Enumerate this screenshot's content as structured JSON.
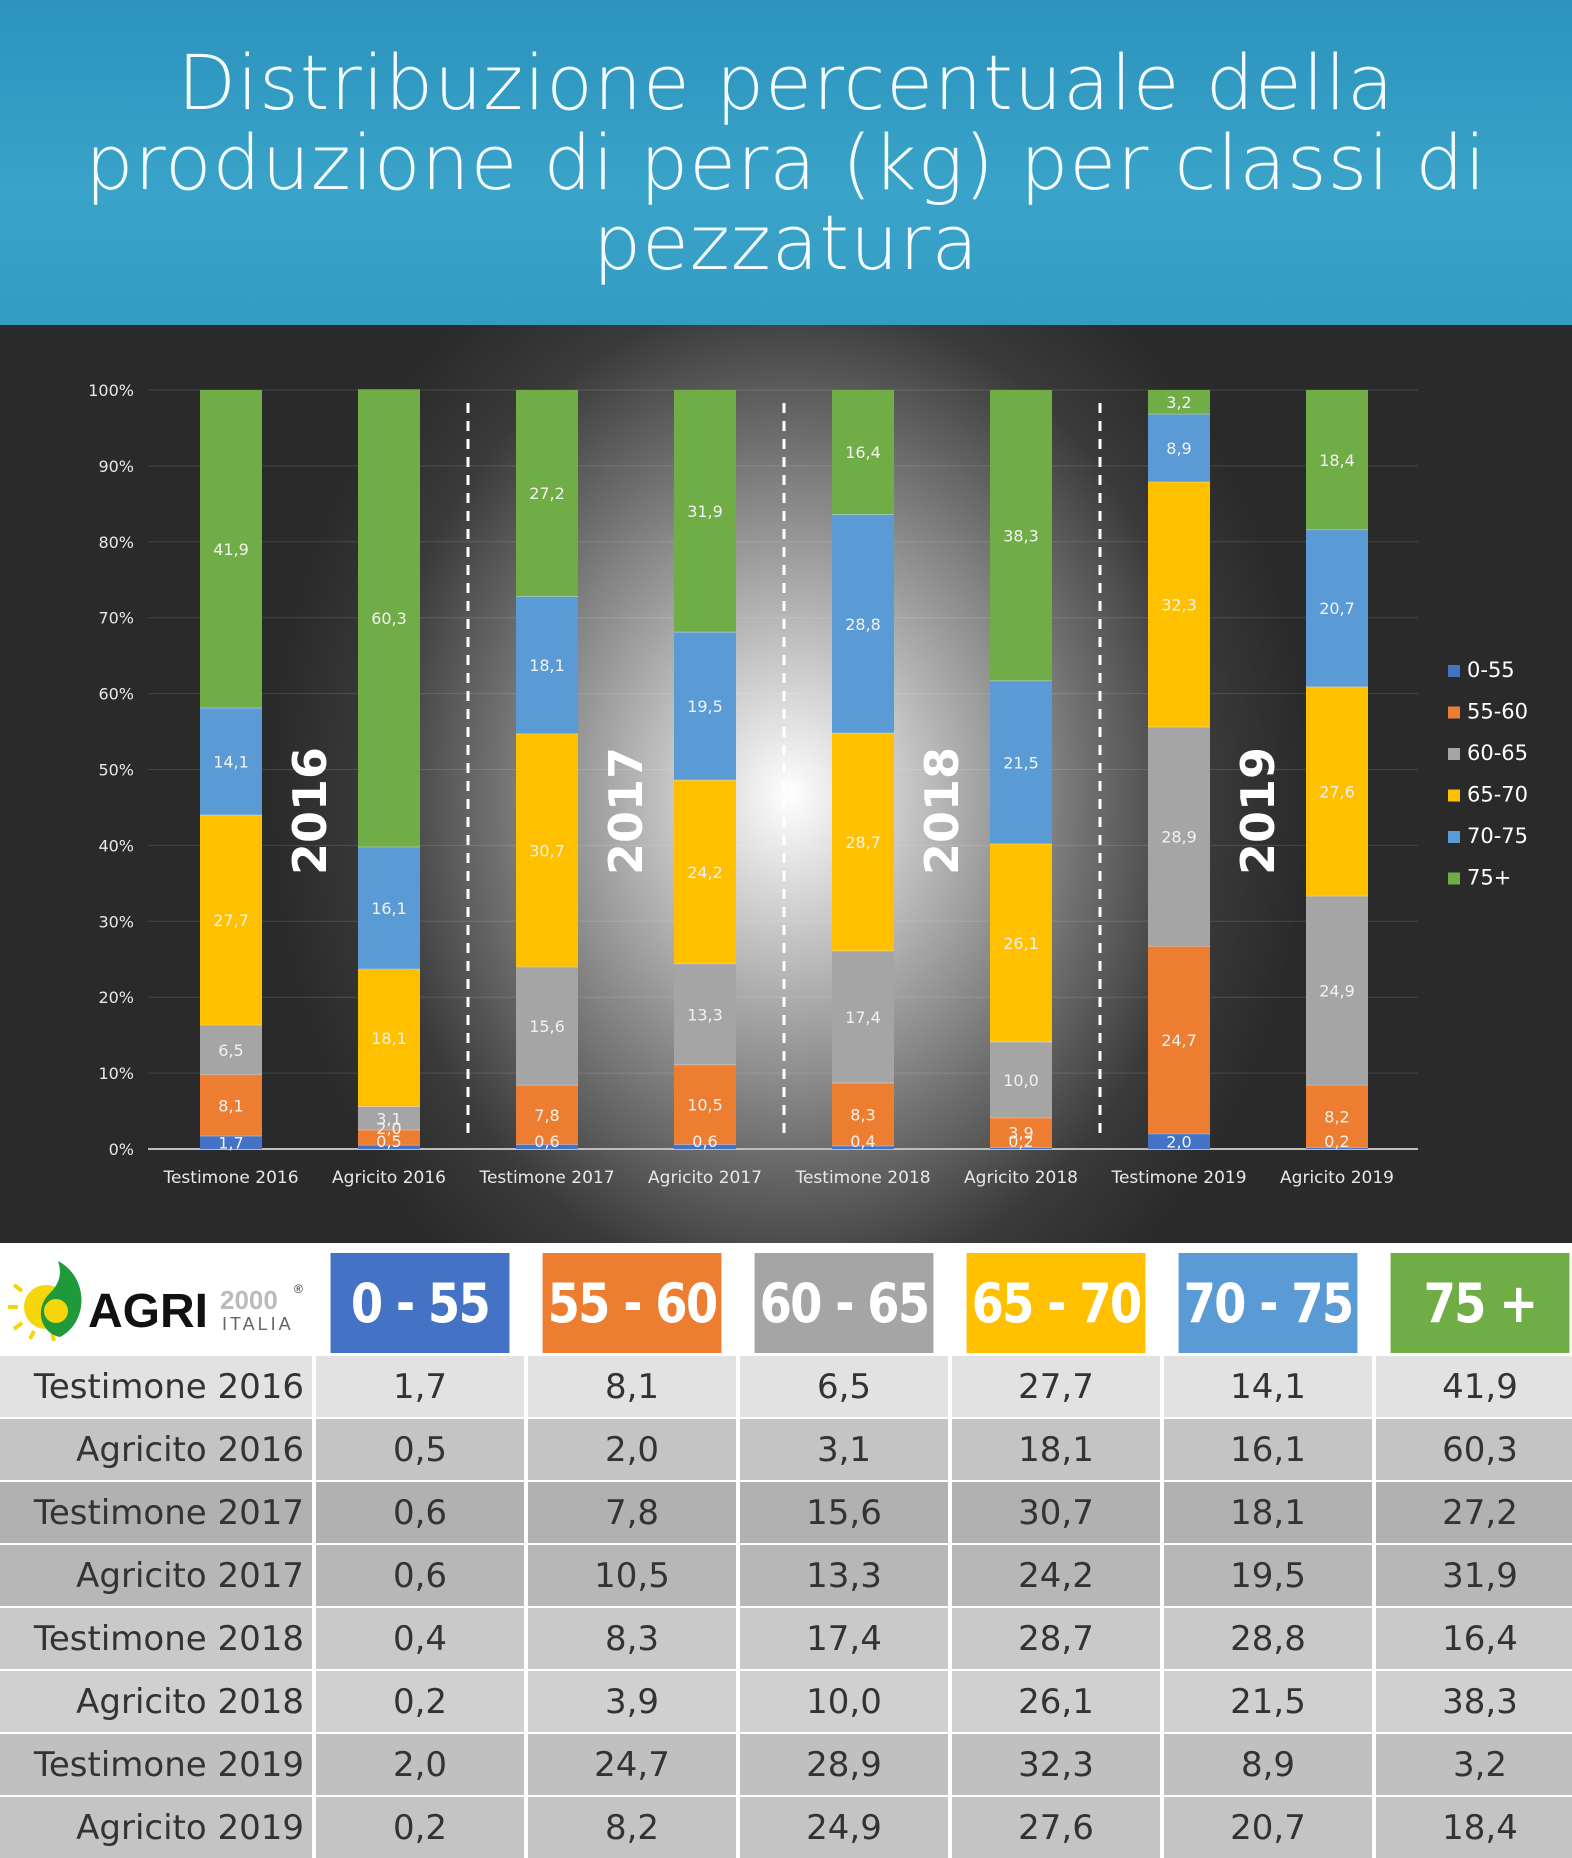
{
  "header": {
    "title": "Distribuzione percentuale della produzione di pera (kg) per classi di pezzatura"
  },
  "logo": {
    "brand": "AGRI",
    "brand_number": "2000",
    "brand_sub": "ITALIA",
    "registered": "®"
  },
  "chart_data": {
    "type": "bar",
    "stacked": true,
    "categories": [
      "Testimone 2016",
      "Agricito 2016",
      "Testimone 2017",
      "Agricito 2017",
      "Testimone 2018",
      "Agricito 2018",
      "Testimone 2019",
      "Agricito 2019"
    ],
    "series": [
      {
        "name": "0-55",
        "color": "#4472c4",
        "values": [
          1.7,
          0.5,
          0.6,
          0.6,
          0.4,
          0.2,
          2.0,
          0.2
        ]
      },
      {
        "name": "55-60",
        "color": "#ed7d31",
        "values": [
          8.1,
          2.0,
          7.8,
          10.5,
          8.3,
          3.9,
          24.7,
          8.2
        ]
      },
      {
        "name": "60-65",
        "color": "#a5a5a5",
        "values": [
          6.5,
          3.1,
          15.6,
          13.3,
          17.4,
          10.0,
          28.9,
          24.9
        ]
      },
      {
        "name": "65-70",
        "color": "#ffc000",
        "values": [
          27.7,
          18.1,
          30.7,
          24.2,
          28.7,
          26.1,
          32.3,
          27.6
        ]
      },
      {
        "name": "70-75",
        "color": "#5b9bd5",
        "values": [
          14.1,
          16.1,
          18.1,
          19.5,
          28.8,
          21.5,
          8.9,
          20.7
        ]
      },
      {
        "name": "75+",
        "color": "#70ad47",
        "values": [
          41.9,
          60.3,
          27.2,
          31.9,
          16.4,
          38.3,
          3.2,
          18.4
        ]
      }
    ],
    "data_labels": [
      [
        "1,7",
        "0,5",
        "0,6",
        "0,6",
        "0,4",
        "0,2",
        "2,0",
        "0,2"
      ],
      [
        "8,1",
        "2,0",
        "7,8",
        "10,5",
        "8,3",
        "3,9",
        "24,7",
        "8,2"
      ],
      [
        "6,5",
        "3,1",
        "15,6",
        "13,3",
        "17,4",
        "10,0",
        "28,9",
        "24,9"
      ],
      [
        "27,7",
        "18,1",
        "30,7",
        "24,2",
        "28,7",
        "26,1",
        "32,3",
        "27,6"
      ],
      [
        "14,1",
        "16,1",
        "18,1",
        "19,5",
        "28,8",
        "21,5",
        "8,9",
        "20,7"
      ],
      [
        "41,9",
        "60,3",
        "27,2",
        "31,9",
        "16,4",
        "38,3",
        "3,2",
        "18,4"
      ]
    ],
    "year_labels": [
      "2016",
      "2017",
      "2018",
      "2019"
    ],
    "ylim": [
      0,
      100
    ],
    "yticks": [
      "0%",
      "10%",
      "20%",
      "30%",
      "40%",
      "50%",
      "60%",
      "70%",
      "80%",
      "90%",
      "100%"
    ],
    "grid": true,
    "legend_position": "right"
  },
  "table": {
    "headers": [
      "0 - 55",
      "55 - 60",
      "60 - 65",
      "65 - 70",
      "70 - 75",
      "75 +"
    ],
    "header_colors": [
      "#4472c4",
      "#ed7d31",
      "#a5a5a5",
      "#ffc000",
      "#5b9bd5",
      "#70ad47"
    ],
    "rows": [
      {
        "label": "Testimone 2016",
        "values": [
          "1,7",
          "8,1",
          "6,5",
          "27,7",
          "14,1",
          "41,9"
        ]
      },
      {
        "label": "Agricito 2016",
        "values": [
          "0,5",
          "2,0",
          "3,1",
          "18,1",
          "16,1",
          "60,3"
        ]
      },
      {
        "label": "Testimone 2017",
        "values": [
          "0,6",
          "7,8",
          "15,6",
          "30,7",
          "18,1",
          "27,2"
        ]
      },
      {
        "label": "Agricito 2017",
        "values": [
          "0,6",
          "10,5",
          "13,3",
          "24,2",
          "19,5",
          "31,9"
        ]
      },
      {
        "label": "Testimone 2018",
        "values": [
          "0,4",
          "8,3",
          "17,4",
          "28,7",
          "28,8",
          "16,4"
        ]
      },
      {
        "label": "Agricito 2018",
        "values": [
          "0,2",
          "3,9",
          "10,0",
          "26,1",
          "21,5",
          "38,3"
        ]
      },
      {
        "label": "Testimone 2019",
        "values": [
          "2,0",
          "24,7",
          "28,9",
          "32,3",
          "8,9",
          "3,2"
        ]
      },
      {
        "label": "Agricito 2019",
        "values": [
          "0,2",
          "8,2",
          "24,9",
          "27,6",
          "20,7",
          "18,4"
        ]
      }
    ]
  }
}
